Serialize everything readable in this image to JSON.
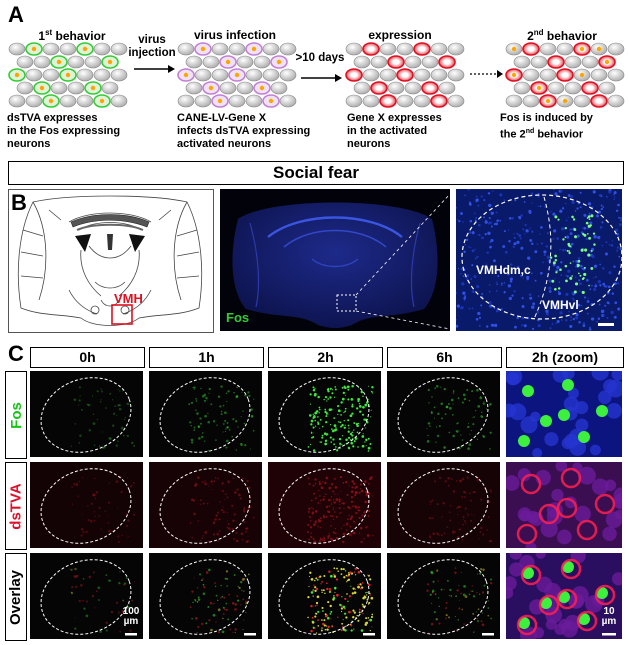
{
  "panel_a": {
    "label": "A",
    "steps": [
      {
        "title_main": "1",
        "title_sup": "st",
        "title_rest": " behavior",
        "caption": [
          "dsTVA expresses",
          "in the Fos expressing",
          "neurons"
        ]
      },
      {
        "title_main": "virus infection",
        "title_sup": "",
        "title_rest": "",
        "caption": [
          "CANE-LV-Gene X",
          "infects dsTVA expressing",
          "activated neurons"
        ]
      },
      {
        "title_main": "expression",
        "title_sup": "",
        "title_rest": "",
        "caption": [
          "Gene X expresses",
          "in the activated",
          "neurons"
        ]
      },
      {
        "title_main": "2",
        "title_sup": "nd",
        "title_rest": " behavior",
        "caption": [
          "Fos is induced by",
          "the 2",
          "behavior"
        ],
        "caption_sup": "nd"
      }
    ],
    "arrows": [
      {
        "label": [
          "virus",
          "injection"
        ]
      },
      {
        "label": [
          ">10 days"
        ]
      },
      {
        "label": []
      }
    ]
  },
  "banner": {
    "title": "Social fear"
  },
  "panel_b": {
    "label": "B",
    "region_label": "VMH",
    "channel_label": "Fos",
    "zoom_labels": {
      "left": "VMHdm,c",
      "right": "VMHvl"
    }
  },
  "panel_c": {
    "label": "C",
    "columns": [
      "0h",
      "1h",
      "2h",
      "6h",
      "2h (zoom)"
    ],
    "rows": [
      {
        "label": "Fos",
        "color": "#18c418"
      },
      {
        "label": "dsTVA",
        "color": "#e0102a"
      },
      {
        "label": "Overlay",
        "color": "#000000"
      }
    ],
    "scalebar_main": [
      "100",
      "µm"
    ],
    "scalebar_zoom": [
      "10",
      "µm"
    ]
  },
  "colors": {
    "red": "#e01020",
    "green": "#33cc33",
    "orange": "#ffa500",
    "purple": "#c37fd6",
    "blue_stain": "#1c2fb0"
  }
}
